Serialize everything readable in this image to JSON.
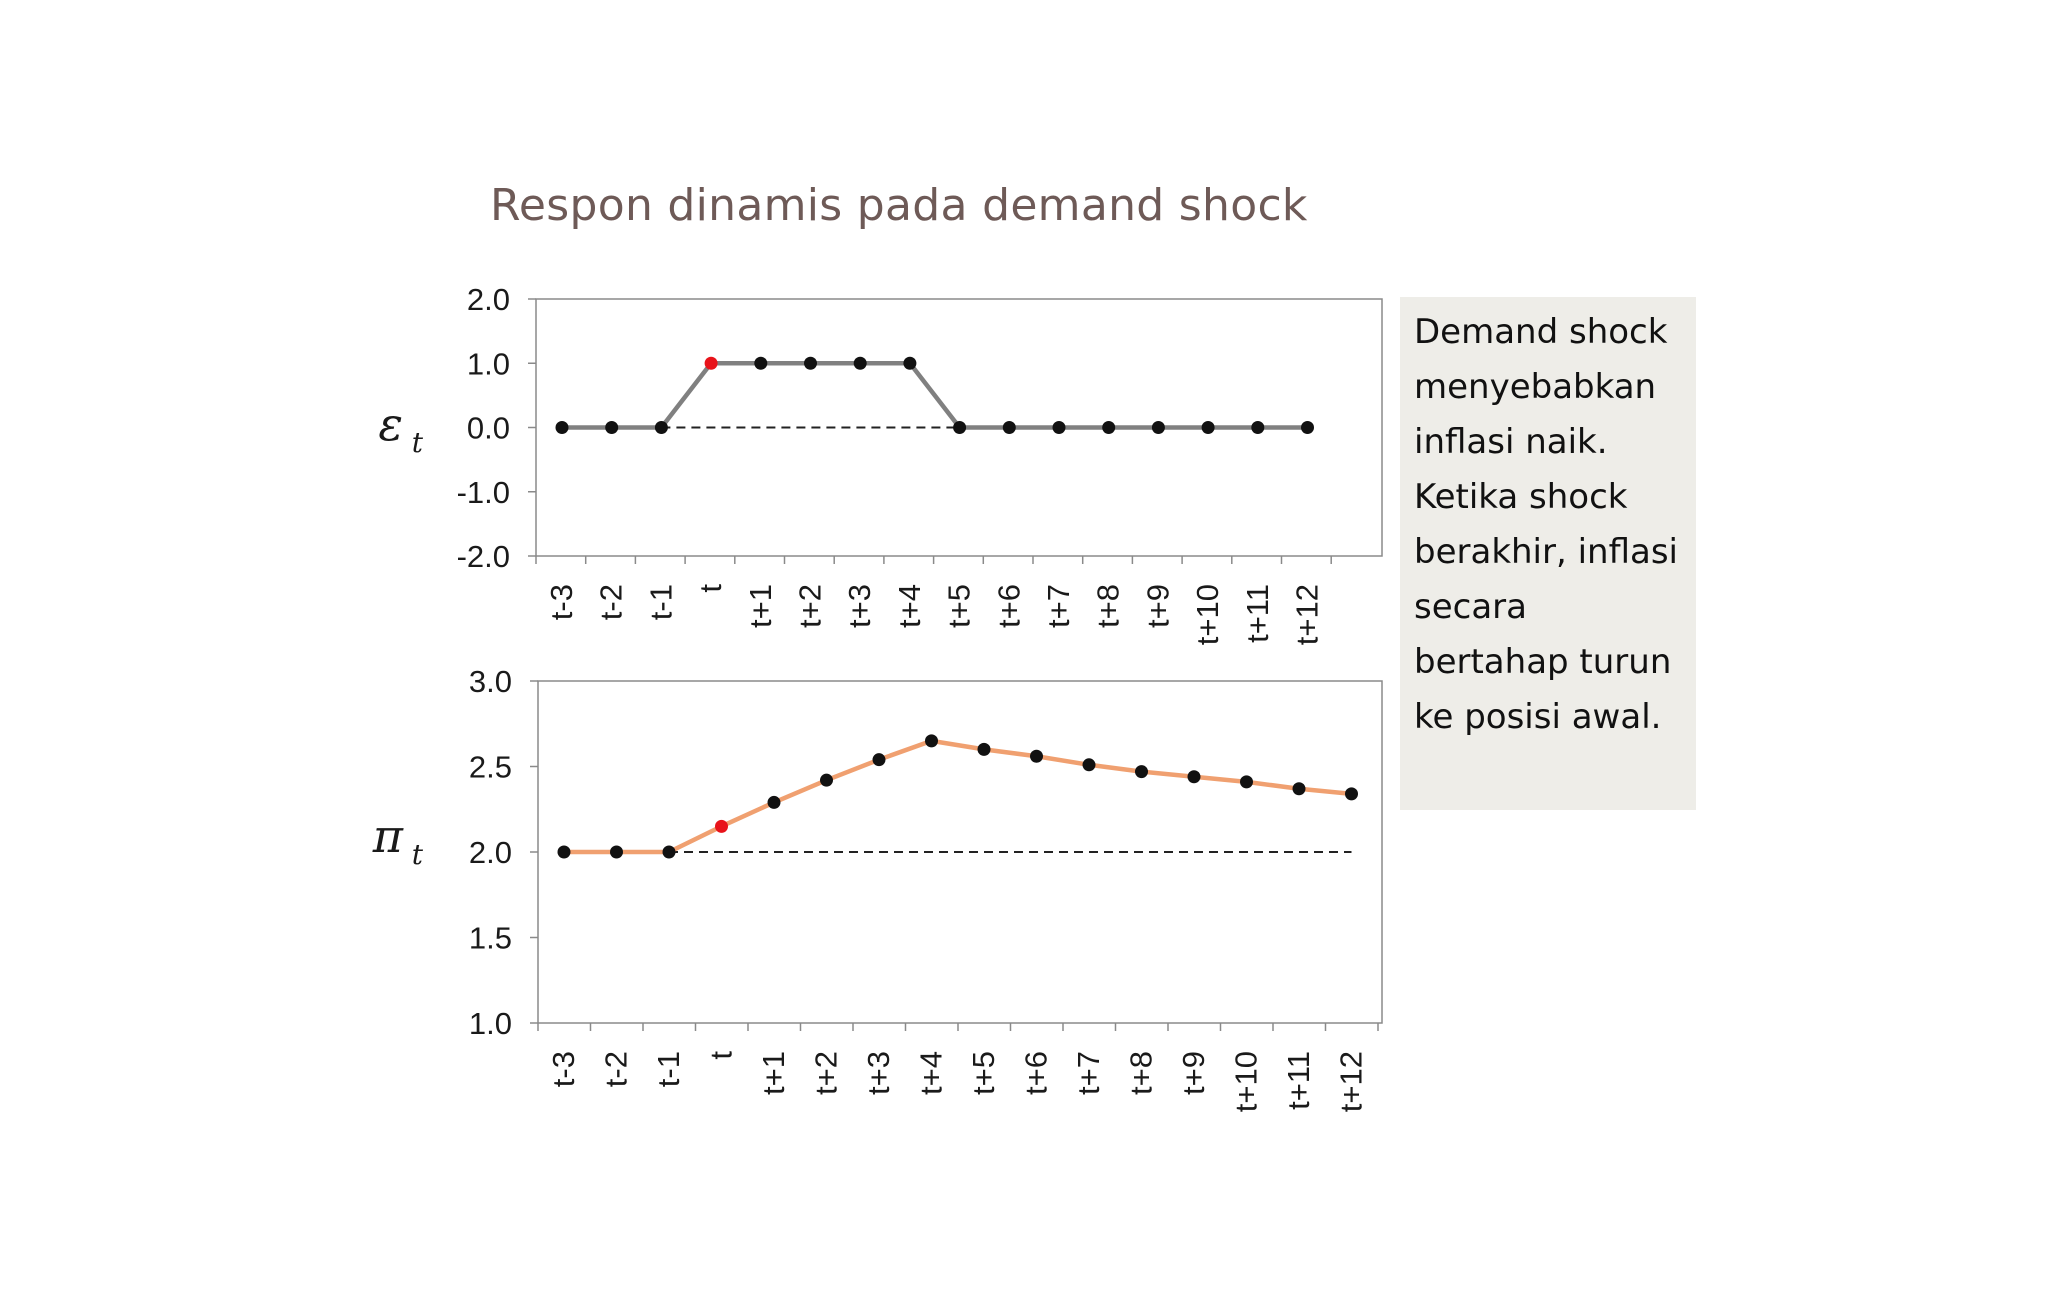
{
  "title": "Respon dinamis pada demand shock",
  "note": "Demand shock menyebabkan inflasi naik. Ketika shock berakhir, inflasi secara bertahap turun ke posisi awal.",
  "colors": {
    "epsilon_line": "#808080",
    "pi_line": "#f0a070",
    "marker": "#111111",
    "highlight": "#e8131a",
    "baseline": "#222222"
  },
  "chart_data": [
    {
      "type": "line",
      "ylabel": "ε",
      "ylabel_sub": "t",
      "categories": [
        "t-3",
        "t-2",
        "t-1",
        "t",
        "t+1",
        "t+2",
        "t+3",
        "t+4",
        "t+5",
        "t+6",
        "t+7",
        "t+8",
        "t+9",
        "t+10",
        "t+11",
        "t+12"
      ],
      "ylim": [
        -2.0,
        2.0
      ],
      "yticks": [
        "2.0",
        "1.0",
        "0.0",
        "-1.0",
        "-2.0"
      ],
      "series": [
        {
          "values": [
            0,
            0,
            0,
            1,
            1,
            1,
            1,
            1,
            0,
            0,
            0,
            0,
            0,
            0,
            0,
            0
          ]
        }
      ],
      "highlight_point": "t",
      "baseline": 0.0,
      "grid": false
    },
    {
      "type": "line",
      "ylabel": "π",
      "ylabel_sub": "t",
      "categories": [
        "t-3",
        "t-2",
        "t-1",
        "t",
        "t+1",
        "t+2",
        "t+3",
        "t+4",
        "t+5",
        "t+6",
        "t+7",
        "t+8",
        "t+9",
        "t+10",
        "t+11",
        "t+12"
      ],
      "ylim": [
        1.0,
        3.0
      ],
      "yticks": [
        "3.0",
        "2.5",
        "2.0",
        "1.5",
        "1.0"
      ],
      "series": [
        {
          "values": [
            2.0,
            2.0,
            2.0,
            2.15,
            2.29,
            2.42,
            2.54,
            2.65,
            2.6,
            2.56,
            2.51,
            2.47,
            2.44,
            2.41,
            2.37,
            2.34
          ]
        }
      ],
      "highlight_point": "t",
      "baseline": 2.0,
      "grid": false
    }
  ]
}
